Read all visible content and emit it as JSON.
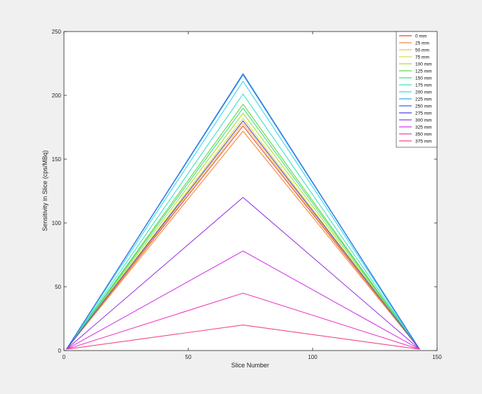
{
  "chart_data": {
    "type": "line",
    "xlabel": "Slice Number",
    "ylabel": "Sensitivity in Slice (cps/MBq)",
    "xlim": [
      0,
      150
    ],
    "ylim": [
      0,
      250
    ],
    "xticks": [
      0,
      50,
      100,
      150
    ],
    "yticks": [
      0,
      50,
      100,
      150,
      200,
      250
    ],
    "grid": false,
    "legend_position": "top-right",
    "x": [
      1,
      72,
      143
    ],
    "series": [
      {
        "name": "0 mm",
        "color": "#e8453c",
        "values": [
          1,
          176,
          1
        ]
      },
      {
        "name": "25 mm",
        "color": "#f28a3a",
        "values": [
          1,
          172,
          1
        ]
      },
      {
        "name": "50 mm",
        "color": "#f5c242",
        "values": [
          1,
          178,
          1
        ]
      },
      {
        "name": "75 mm",
        "color": "#d8e23a",
        "values": [
          1,
          182,
          1
        ]
      },
      {
        "name": "100 mm",
        "color": "#a6e03a",
        "values": [
          1,
          186,
          1
        ]
      },
      {
        "name": "125 mm",
        "color": "#5fd83c",
        "values": [
          1,
          193,
          1
        ]
      },
      {
        "name": "150 mm",
        "color": "#40d98a",
        "values": [
          1,
          190,
          1
        ]
      },
      {
        "name": "175 mm",
        "color": "#3ee0c3",
        "values": [
          1,
          201,
          1
        ]
      },
      {
        "name": "200 mm",
        "color": "#3ed9e8",
        "values": [
          1,
          211,
          1
        ]
      },
      {
        "name": "225 mm",
        "color": "#3aa9f0",
        "values": [
          1,
          216,
          1
        ]
      },
      {
        "name": "250 mm",
        "color": "#2f6fe0",
        "values": [
          1,
          217,
          1
        ]
      },
      {
        "name": "275 mm",
        "color": "#5846d8",
        "values": [
          1,
          180,
          1
        ]
      },
      {
        "name": "300 mm",
        "color": "#9b3ee6",
        "values": [
          1,
          120,
          1
        ]
      },
      {
        "name": "325 mm",
        "color": "#d23ce8",
        "values": [
          1,
          78,
          1
        ]
      },
      {
        "name": "350 mm",
        "color": "#ef3fbe",
        "values": [
          1,
          45,
          1
        ]
      },
      {
        "name": "375 mm",
        "color": "#f04a80",
        "values": [
          1,
          20,
          1
        ]
      }
    ]
  }
}
